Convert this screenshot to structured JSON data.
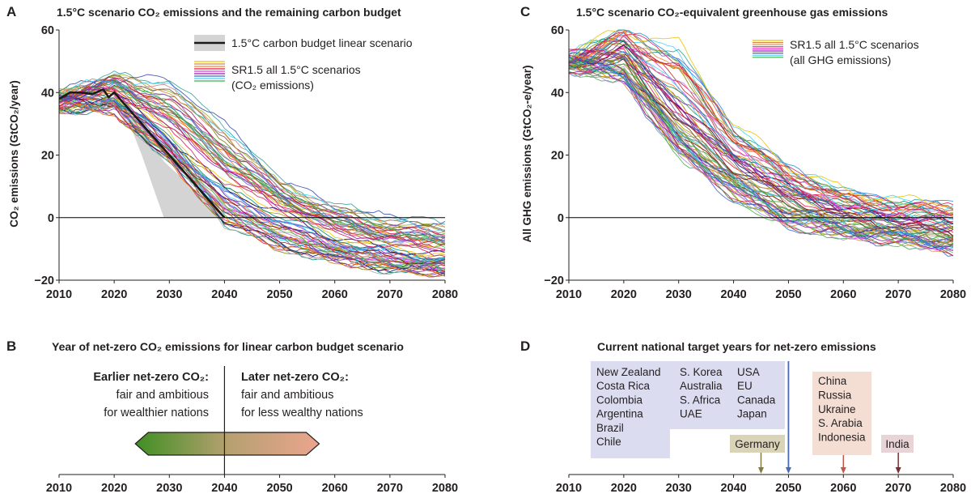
{
  "panels": {
    "A": {
      "letter": "A",
      "title": "1.5°C scenario CO₂ emissions and the remaining carbon budget",
      "ylabel": "CO₂ emissions (GtCO₂/year)",
      "legend_budget": "1.5°C carbon budget linear scenario",
      "legend_sr15_line1": "SR1.5 all 1.5°C scenarios",
      "legend_sr15_line2": "(CO₂ emissions)"
    },
    "B": {
      "letter": "B",
      "title": "Year of net-zero CO₂ emissions for linear carbon budget scenario",
      "earlier_head": "Earlier net-zero CO₂:",
      "earlier_l1": "fair and ambitious",
      "earlier_l2": "for wealthier nations",
      "later_head": "Later net-zero CO₂:",
      "later_l1": "fair and ambitious",
      "later_l2": "for less wealthy nations"
    },
    "C": {
      "letter": "C",
      "title": "1.5°C scenario CO₂-equivalent greenhouse gas emissions",
      "ylabel": "All GHG emissions (GtCO₂-e/year)",
      "legend_l1": "SR1.5 all 1.5°C scenarios",
      "legend_l2": "(all GHG emissions)"
    },
    "D": {
      "letter": "D",
      "title": "Current national target years for net-zero emissions"
    }
  },
  "chart_data": [
    {
      "id": "A",
      "type": "line",
      "title": "1.5°C scenario CO₂ emissions and the remaining carbon budget",
      "xlabel": "",
      "ylabel": "CO₂ emissions (GtCO₂/year)",
      "xlim": [
        2010,
        2080
      ],
      "ylim": [
        -20,
        60
      ],
      "xticks": [
        2010,
        2020,
        2030,
        2040,
        2050,
        2060,
        2070,
        2080
      ],
      "yticks": [
        -20,
        0,
        20,
        40,
        60
      ],
      "carbon_budget_linear": {
        "x": [
          2010,
          2012,
          2014,
          2016,
          2018,
          2019,
          2020,
          2021,
          2040
        ],
        "y": [
          38,
          40,
          40,
          39.5,
          41,
          38.5,
          40,
          38,
          0
        ]
      },
      "carbon_budget_range": {
        "x": [
          2021,
          2025,
          2029,
          2040
        ],
        "y_lower": [
          38,
          20,
          0,
          0
        ],
        "y_upper": [
          38,
          28,
          18,
          0
        ]
      },
      "sr15_envelope": {
        "x": [
          2010,
          2020,
          2030,
          2040,
          2050,
          2060,
          2070,
          2080
        ],
        "min": [
          35,
          34,
          18,
          -2,
          -10,
          -14,
          -17,
          -18
        ],
        "median": [
          37.5,
          40,
          26,
          10,
          2,
          -6,
          -10,
          -12
        ],
        "max": [
          40,
          45,
          44,
          30,
          12,
          4,
          0,
          -2
        ]
      },
      "legend": [
        "1.5°C carbon budget linear scenario",
        "SR1.5 all 1.5°C scenarios (CO₂ emissions)"
      ]
    },
    {
      "id": "C",
      "type": "line",
      "title": "1.5°C scenario CO₂-equivalent greenhouse gas emissions",
      "xlabel": "",
      "ylabel": "All GHG emissions (GtCO₂-e/year)",
      "xlim": [
        2010,
        2080
      ],
      "ylim": [
        -20,
        60
      ],
      "xticks": [
        2010,
        2020,
        2030,
        2040,
        2050,
        2060,
        2070,
        2080
      ],
      "yticks": [
        -20,
        0,
        20,
        40,
        60
      ],
      "sr15_envelope": {
        "x": [
          2010,
          2020,
          2030,
          2040,
          2050,
          2060,
          2070,
          2080
        ],
        "min": [
          48,
          44,
          20,
          6,
          -3,
          -6,
          -8,
          -11
        ],
        "median": [
          50,
          52,
          32,
          17,
          7,
          1,
          -2,
          -4
        ],
        "max": [
          52,
          60,
          56,
          30,
          17,
          9,
          6,
          5
        ]
      },
      "legend": [
        "SR1.5 all 1.5°C scenarios (all GHG emissions)"
      ]
    },
    {
      "id": "B",
      "type": "range",
      "title": "Year of net-zero CO₂ emissions for linear carbon budget scenario",
      "xlim": [
        2010,
        2080
      ],
      "xticks": [
        2010,
        2020,
        2030,
        2040,
        2050,
        2060,
        2070,
        2080
      ],
      "range": [
        2025,
        2056
      ],
      "central_year": 2040,
      "colors": [
        "#4d9a2e",
        "#e8a088"
      ]
    },
    {
      "id": "D",
      "type": "timeline",
      "title": "Current national target years for net-zero emissions",
      "xlim": [
        2010,
        2080
      ],
      "xticks": [
        2010,
        2020,
        2030,
        2040,
        2050,
        2060,
        2070,
        2080
      ],
      "targets": [
        {
          "year": 2045,
          "countries": [
            "Germany"
          ],
          "color": "#d9d3b7",
          "arrow": "#827a40"
        },
        {
          "year": 2050,
          "countries": [
            "New Zealand",
            "Costa Rica",
            "Colombia",
            "Argentina",
            "Brazil",
            "Chile",
            "S. Korea",
            "Australia",
            "S. Africa",
            "UAE",
            "USA",
            "EU",
            "Canada",
            "Japan"
          ],
          "color": "#dbdcf0",
          "arrow": "#4a6ab4"
        },
        {
          "year": 2060,
          "countries": [
            "China",
            "Russia",
            "Ukraine",
            "S. Arabia",
            "Indonesia"
          ],
          "color": "#f4ddd3",
          "arrow": "#c0584c"
        },
        {
          "year": 2070,
          "countries": [
            "India"
          ],
          "color": "#e8d3d6",
          "arrow": "#7a3030"
        }
      ]
    }
  ],
  "colors": {
    "text": "#231f20",
    "budget_fill": "#d4d4d4",
    "budget_line": "#1a1a1a",
    "zero_line": "#000000",
    "arrow_green": "#4d9a2e",
    "arrow_salmon": "#e8a088"
  }
}
